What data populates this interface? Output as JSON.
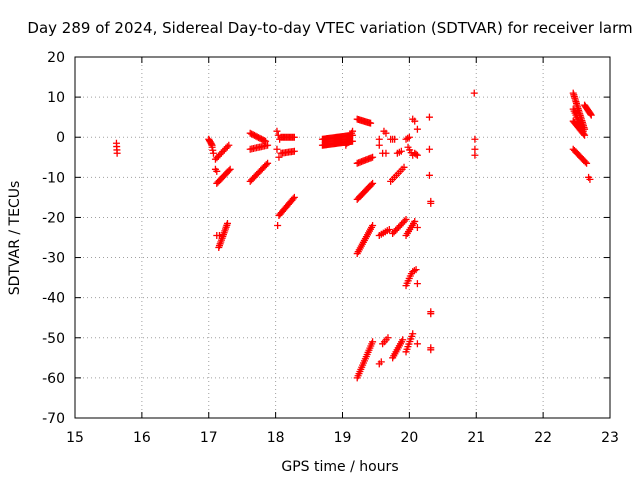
{
  "colors": {
    "points": "#ff0000",
    "axes": "#000000",
    "grid": "#a0a0a0",
    "background": "#ffffff"
  },
  "chart_data": {
    "type": "scatter",
    "title": "Day 289 of 2024, Sidereal Day-to-day VTEC variation (SDTVAR) for receiver larm",
    "xlabel": "GPS time / hours",
    "ylabel": "SDTVAR / TECUs",
    "xlim": [
      15,
      23
    ],
    "ylim": [
      -70,
      20
    ],
    "xticks": [
      15,
      16,
      17,
      18,
      19,
      20,
      21,
      22,
      23
    ],
    "yticks": [
      20,
      10,
      0,
      -10,
      -20,
      -30,
      -40,
      -50,
      -60,
      -70
    ],
    "grid": true,
    "marker": "+",
    "segments": [
      {
        "x0": 15.62,
        "y0": -1.5,
        "x1": 15.63,
        "y1": -4.0,
        "n": 4
      },
      {
        "x0": 17.0,
        "y0": -0.5,
        "x1": 17.05,
        "y1": -2.0,
        "n": 6
      },
      {
        "x0": 17.05,
        "y0": -2.5,
        "x1": 17.07,
        "y1": -4.0,
        "n": 3
      },
      {
        "x0": 17.1,
        "y0": -5.5,
        "x1": 17.3,
        "y1": -2.0,
        "n": 10
      },
      {
        "x0": 17.12,
        "y0": -11.5,
        "x1": 17.32,
        "y1": -8.0,
        "n": 12
      },
      {
        "x0": 17.15,
        "y0": -27.5,
        "x1": 17.28,
        "y1": -21.5,
        "n": 14
      },
      {
        "x0": 17.12,
        "y0": -24.5,
        "x1": 17.16,
        "y1": -24.5,
        "n": 2
      },
      {
        "x0": 17.1,
        "y0": -8.0,
        "x1": 17.12,
        "y1": -8.5,
        "n": 2
      },
      {
        "x0": 17.62,
        "y0": 1.0,
        "x1": 17.85,
        "y1": -1.0,
        "n": 12
      },
      {
        "x0": 17.62,
        "y0": -3.0,
        "x1": 17.88,
        "y1": -2.0,
        "n": 12
      },
      {
        "x0": 17.62,
        "y0": -11.0,
        "x1": 17.88,
        "y1": -6.5,
        "n": 14
      },
      {
        "x0": 18.02,
        "y0": 1.5,
        "x1": 18.06,
        "y1": -0.5,
        "n": 3
      },
      {
        "x0": 18.08,
        "y0": 0.0,
        "x1": 18.28,
        "y1": 0.0,
        "n": 12
      },
      {
        "x0": 18.02,
        "y0": -3.0,
        "x1": 18.05,
        "y1": -5.0,
        "n": 2
      },
      {
        "x0": 18.08,
        "y0": -4.0,
        "x1": 18.28,
        "y1": -3.5,
        "n": 10
      },
      {
        "x0": 18.03,
        "y0": -22.0,
        "x1": 18.03,
        "y1": -22.0,
        "n": 1
      },
      {
        "x0": 18.05,
        "y0": -19.5,
        "x1": 18.28,
        "y1": -15.0,
        "n": 14
      },
      {
        "x0": 18.7,
        "y0": -0.5,
        "x1": 19.15,
        "y1": 0.5,
        "n": 30
      },
      {
        "x0": 18.7,
        "y0": -2.0,
        "x1": 19.15,
        "y1": -1.0,
        "n": 30
      },
      {
        "x0": 19.05,
        "y0": -2.0,
        "x1": 19.15,
        "y1": 1.5,
        "n": 8
      },
      {
        "x0": 19.22,
        "y0": 4.5,
        "x1": 19.42,
        "y1": 3.5,
        "n": 12
      },
      {
        "x0": 19.22,
        "y0": -6.5,
        "x1": 19.45,
        "y1": -5.0,
        "n": 12
      },
      {
        "x0": 19.22,
        "y0": -15.5,
        "x1": 19.45,
        "y1": -11.5,
        "n": 14
      },
      {
        "x0": 19.22,
        "y0": -29.0,
        "x1": 19.45,
        "y1": -22.0,
        "n": 16
      },
      {
        "x0": 19.22,
        "y0": -60.0,
        "x1": 19.45,
        "y1": -51.0,
        "n": 18
      },
      {
        "x0": 19.55,
        "y0": -0.5,
        "x1": 19.55,
        "y1": -2.0,
        "n": 2
      },
      {
        "x0": 19.62,
        "y0": 1.5,
        "x1": 19.65,
        "y1": 1.0,
        "n": 2
      },
      {
        "x0": 19.55,
        "y0": -24.5,
        "x1": 19.7,
        "y1": -23.0,
        "n": 6
      },
      {
        "x0": 19.55,
        "y0": -56.5,
        "x1": 19.58,
        "y1": -56.0,
        "n": 2
      },
      {
        "x0": 19.6,
        "y0": -51.5,
        "x1": 19.68,
        "y1": -50.0,
        "n": 4
      },
      {
        "x0": 19.6,
        "y0": -4.0,
        "x1": 19.65,
        "y1": -4.0,
        "n": 2
      },
      {
        "x0": 19.72,
        "y0": -11.0,
        "x1": 19.92,
        "y1": -7.5,
        "n": 8
      },
      {
        "x0": 19.75,
        "y0": -24.0,
        "x1": 19.95,
        "y1": -20.5,
        "n": 10
      },
      {
        "x0": 19.75,
        "y0": -55.0,
        "x1": 19.9,
        "y1": -50.5,
        "n": 10
      },
      {
        "x0": 19.72,
        "y0": -0.5,
        "x1": 19.78,
        "y1": -0.5,
        "n": 3
      },
      {
        "x0": 19.82,
        "y0": -4.0,
        "x1": 19.88,
        "y1": -3.5,
        "n": 3
      },
      {
        "x0": 19.95,
        "y0": -53.5,
        "x1": 20.05,
        "y1": -49.0,
        "n": 8
      },
      {
        "x0": 19.95,
        "y0": -24.5,
        "x1": 20.08,
        "y1": -21.0,
        "n": 8
      },
      {
        "x0": 19.95,
        "y0": -37.0,
        "x1": 20.03,
        "y1": -34.0,
        "n": 6
      },
      {
        "x0": 20.05,
        "y0": -33.5,
        "x1": 20.1,
        "y1": -33.0,
        "n": 3
      },
      {
        "x0": 19.98,
        "y0": -2.5,
        "x1": 20.05,
        "y1": -4.5,
        "n": 4
      },
      {
        "x0": 19.95,
        "y0": -0.5,
        "x1": 20.0,
        "y1": 0.0,
        "n": 3
      },
      {
        "x0": 20.08,
        "y0": -4.0,
        "x1": 20.12,
        "y1": -4.5,
        "n": 3
      },
      {
        "x0": 20.12,
        "y0": -36.5,
        "x1": 20.12,
        "y1": -36.5,
        "n": 1
      },
      {
        "x0": 20.12,
        "y0": -22.5,
        "x1": 20.12,
        "y1": -22.5,
        "n": 1
      },
      {
        "x0": 20.12,
        "y0": -51.5,
        "x1": 20.12,
        "y1": -51.5,
        "n": 1
      },
      {
        "x0": 20.12,
        "y0": 2.0,
        "x1": 20.12,
        "y1": 2.0,
        "n": 1
      },
      {
        "x0": 20.05,
        "y0": 4.5,
        "x1": 20.08,
        "y1": 4.0,
        "n": 2
      },
      {
        "x0": 20.3,
        "y0": 5.0,
        "x1": 20.3,
        "y1": 5.0,
        "n": 1
      },
      {
        "x0": 20.3,
        "y0": -3.0,
        "x1": 20.3,
        "y1": -3.0,
        "n": 1
      },
      {
        "x0": 20.3,
        "y0": -9.5,
        "x1": 20.3,
        "y1": -9.5,
        "n": 1
      },
      {
        "x0": 20.32,
        "y0": -16.5,
        "x1": 20.32,
        "y1": -16.0,
        "n": 2
      },
      {
        "x0": 20.32,
        "y0": -44.0,
        "x1": 20.32,
        "y1": -43.5,
        "n": 2
      },
      {
        "x0": 20.32,
        "y0": -52.5,
        "x1": 20.32,
        "y1": -53.0,
        "n": 2
      },
      {
        "x0": 20.97,
        "y0": 11.0,
        "x1": 20.97,
        "y1": 11.0,
        "n": 1
      },
      {
        "x0": 20.98,
        "y0": -0.5,
        "x1": 20.98,
        "y1": -0.5,
        "n": 1
      },
      {
        "x0": 20.98,
        "y0": -3.0,
        "x1": 20.98,
        "y1": -4.5,
        "n": 2
      },
      {
        "x0": 22.45,
        "y0": 11.0,
        "x1": 22.62,
        "y1": 2.0,
        "n": 22
      },
      {
        "x0": 22.45,
        "y0": 4.0,
        "x1": 22.62,
        "y1": 0.5,
        "n": 14
      },
      {
        "x0": 22.45,
        "y0": 7.0,
        "x1": 22.6,
        "y1": 1.5,
        "n": 12
      },
      {
        "x0": 22.62,
        "y0": 8.0,
        "x1": 22.72,
        "y1": 5.5,
        "n": 10
      },
      {
        "x0": 22.45,
        "y0": -3.0,
        "x1": 22.65,
        "y1": -6.5,
        "n": 12
      },
      {
        "x0": 22.68,
        "y0": -10.0,
        "x1": 22.7,
        "y1": -10.5,
        "n": 2
      }
    ]
  }
}
